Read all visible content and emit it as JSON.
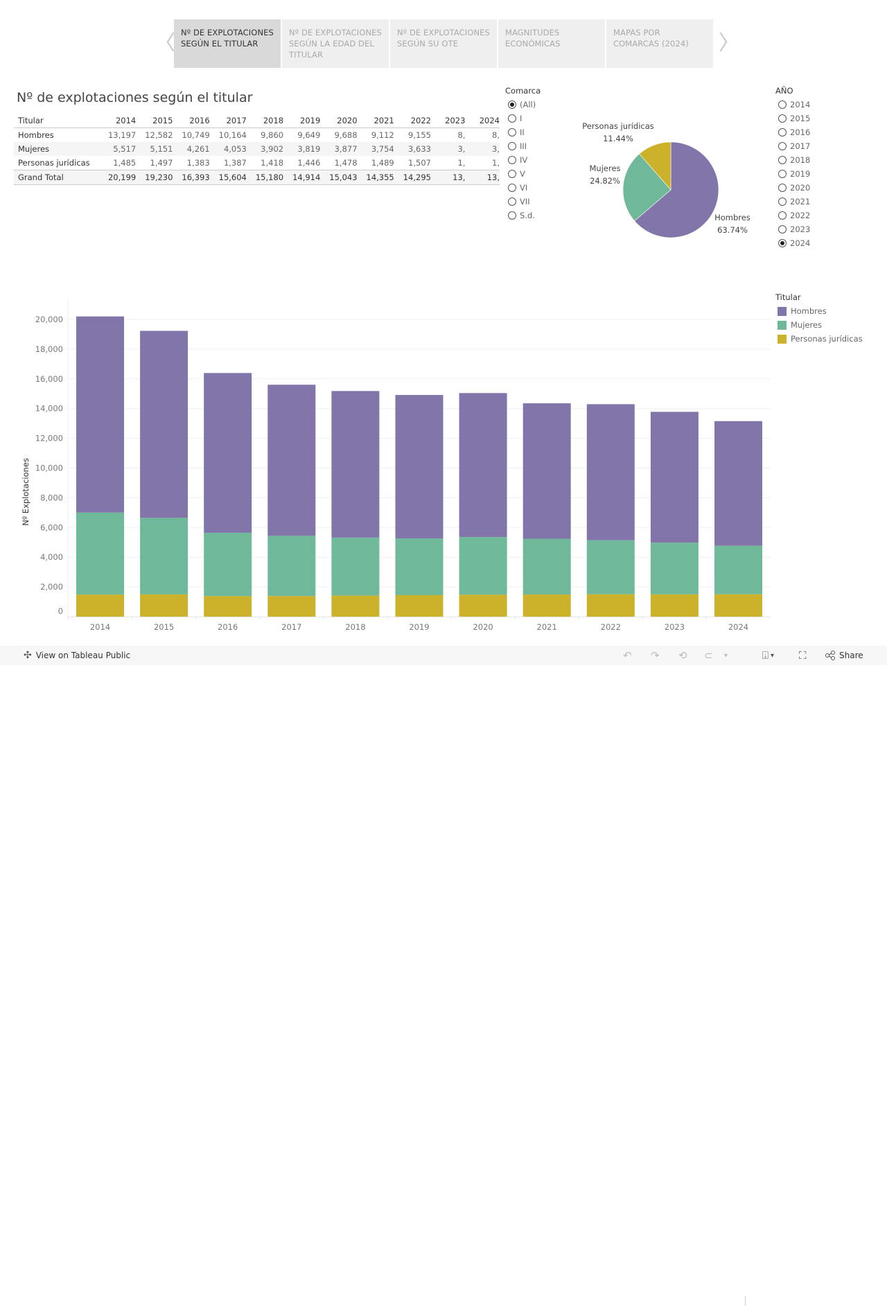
{
  "nav": {
    "prev_icon": "chevron-left-icon",
    "next_icon": "chevron-right-icon",
    "prev_glyph": "〈",
    "next_glyph": "〉",
    "tabs": [
      {
        "label": "Nº DE EXPLOTACIONES SEGÚN EL TITULAR",
        "active": true
      },
      {
        "label": "Nº DE EXPLOTACIONES SEGÚN LA EDAD DEL TITULAR",
        "active": false
      },
      {
        "label": "Nº DE EXPLOTACIONES SEGÚN SU OTE",
        "active": false
      },
      {
        "label": "MAGNITUDES ECONÓMICAS",
        "active": false
      },
      {
        "label": "MAPAS POR COMARCAS (2024)",
        "active": false
      }
    ]
  },
  "title": "Nº de explotaciones según el titular",
  "table": {
    "header_label": "Titular",
    "columns": [
      "2014",
      "2015",
      "2016",
      "2017",
      "2018",
      "2019",
      "2020",
      "2021",
      "2022",
      "2023",
      "2024"
    ],
    "rows": [
      {
        "label": "Hombres",
        "values": [
          "13,197",
          "12,582",
          "10,749",
          "10,164",
          "9,860",
          "9,649",
          "9,688",
          "9,112",
          "9,155",
          "8,",
          "8,"
        ]
      },
      {
        "label": "Mujeres",
        "values": [
          "5,517",
          "5,151",
          "4,261",
          "4,053",
          "3,902",
          "3,819",
          "3,877",
          "3,754",
          "3,633",
          "3,",
          "3,"
        ]
      },
      {
        "label": "Personas jurídicas",
        "values": [
          "1,485",
          "1,497",
          "1,383",
          "1,387",
          "1,418",
          "1,446",
          "1,478",
          "1,489",
          "1,507",
          "1,",
          "1,"
        ]
      },
      {
        "label": "Grand Total",
        "values": [
          "20,199",
          "19,230",
          "16,393",
          "15,604",
          "15,180",
          "14,914",
          "15,043",
          "14,355",
          "14,295",
          "13,",
          "13,"
        ]
      }
    ]
  },
  "filters": {
    "comarca": {
      "title": "Comarca",
      "options": [
        "(All)",
        "I",
        "II",
        "III",
        "IV",
        "V",
        "VI",
        "VII",
        "S.d."
      ],
      "selected": "(All)"
    },
    "anio": {
      "title": "AÑO",
      "options": [
        "2014",
        "2015",
        "2016",
        "2017",
        "2018",
        "2019",
        "2020",
        "2021",
        "2022",
        "2023",
        "2024"
      ],
      "selected": "2024"
    }
  },
  "legend": {
    "title": "Titular",
    "items": [
      {
        "label": "Hombres",
        "color": "#8175aa"
      },
      {
        "label": "Mujeres",
        "color": "#6fb899"
      },
      {
        "label": "Personas jurídicas",
        "color": "#ccb22b"
      }
    ]
  },
  "toolbar": {
    "view_on_label": "View on Tableau Public",
    "share_label": "Share",
    "undo_glyph": "↶",
    "redo_glyph": "↷",
    "revert_glyph": "⟲",
    "refresh_glyph": "⊂",
    "dropdown_glyph": "▾",
    "download_glyph": "⍗",
    "fullscreen_glyph": "⛶",
    "share_glyph": "≺",
    "tableau_glyph": "✣"
  },
  "chart_data": [
    {
      "type": "pie",
      "title": "",
      "year": "2024",
      "slices": [
        {
          "label": "Hombres",
          "percent": 63.74,
          "color": "#8175aa"
        },
        {
          "label": "Mujeres",
          "percent": 24.82,
          "color": "#6fb899"
        },
        {
          "label": "Personas jurídicas",
          "percent": 11.44,
          "color": "#ccb22b"
        }
      ],
      "slice_labels": [
        {
          "name": "Hombres",
          "pct_text": "63.74%"
        },
        {
          "name": "Mujeres",
          "pct_text": "24.82%"
        },
        {
          "name": "Personas jurídicas",
          "pct_text": "11.44%"
        }
      ]
    },
    {
      "type": "bar",
      "stacked": true,
      "title": "",
      "xlabel": "",
      "ylabel": "Nº Explotaciones",
      "ylim": [
        0,
        21000
      ],
      "yticks": [
        0,
        2000,
        4000,
        6000,
        8000,
        10000,
        12000,
        14000,
        16000,
        18000,
        20000
      ],
      "ytick_labels": [
        "0",
        "2,000",
        "4,000",
        "6,000",
        "8,000",
        "10,000",
        "12,000",
        "14,000",
        "16,000",
        "18,000",
        "20,000"
      ],
      "grid": true,
      "legend": "right",
      "categories": [
        "2014",
        "2015",
        "2016",
        "2017",
        "2018",
        "2019",
        "2020",
        "2021",
        "2022",
        "2023",
        "2024"
      ],
      "series": [
        {
          "name": "Personas jurídicas",
          "color": "#ccb22b",
          "values": [
            1485,
            1497,
            1383,
            1387,
            1418,
            1446,
            1478,
            1489,
            1507,
            1500,
            1505
          ]
        },
        {
          "name": "Mujeres",
          "color": "#6fb899",
          "values": [
            5517,
            5151,
            4261,
            4053,
            3902,
            3819,
            3877,
            3754,
            3633,
            3480,
            3265
          ]
        },
        {
          "name": "Hombres",
          "color": "#8175aa",
          "values": [
            13197,
            12582,
            10749,
            10164,
            9860,
            9649,
            9688,
            9112,
            9155,
            8800,
            8385
          ]
        }
      ]
    }
  ]
}
